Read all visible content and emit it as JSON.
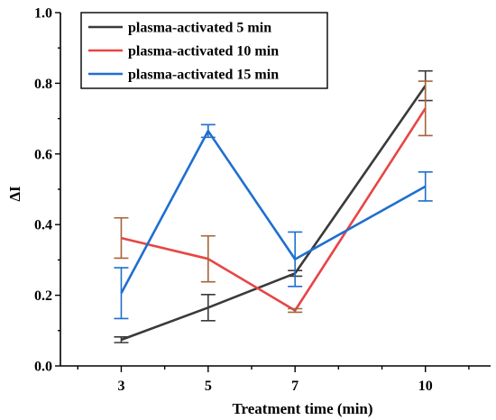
{
  "chart_data": {
    "type": "line",
    "xlabel": "Treatment time (min)",
    "ylabel": "ΔI",
    "x": [
      3,
      5,
      7,
      10
    ],
    "x_tick_labels": [
      "3",
      "5",
      "7",
      "10"
    ],
    "xlim": [
      1.6,
      11.5
    ],
    "ylim": [
      0.0,
      1.0
    ],
    "y_ticks": [
      0.0,
      0.2,
      0.4,
      0.6,
      0.8,
      1.0
    ],
    "y_tick_labels": [
      "0.0",
      "0.2",
      "0.4",
      "0.6",
      "0.8",
      "1.0"
    ],
    "grid": false,
    "legend_position": "top-left",
    "series": [
      {
        "name": "plasma-activated 5 min",
        "color": "#3a3a3a",
        "errbar_color": "#3a3a3a",
        "values": [
          0.074,
          0.165,
          0.262,
          0.793
        ],
        "errors": [
          0.008,
          0.037,
          0.008,
          0.042
        ]
      },
      {
        "name": "plasma-activated 10 min",
        "color": "#e84545",
        "errbar_color": "#a8623a",
        "values": [
          0.362,
          0.303,
          0.157,
          0.729
        ],
        "errors": [
          0.057,
          0.065,
          0.005,
          0.077
        ]
      },
      {
        "name": "plasma-activated 15 min",
        "color": "#1e6fd0",
        "errbar_color": "#1e6fd0",
        "values": [
          0.206,
          0.665,
          0.302,
          0.508
        ],
        "errors": [
          0.072,
          0.018,
          0.077,
          0.041
        ]
      }
    ]
  }
}
